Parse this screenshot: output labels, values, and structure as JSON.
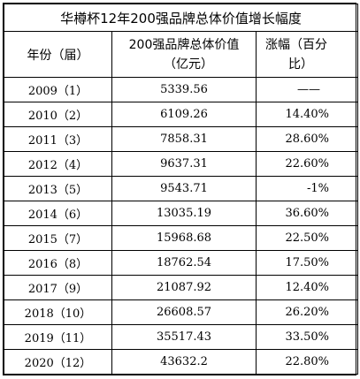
{
  "title": "华樽杯12年200强品牌总体价值增长幅度",
  "headers": {
    "year": "年份（届）",
    "value_line1": "200强品牌总体价值",
    "value_line2": "（亿元）",
    "growth_line1": "涨幅（百分",
    "growth_line2": "比）"
  },
  "rows": [
    {
      "year": "2009（1）",
      "value": "5339.56",
      "growth": "——"
    },
    {
      "year": "2010（2）",
      "value": "6109.26",
      "growth": "14.40%"
    },
    {
      "year": "2011（3）",
      "value": "7858.31",
      "growth": "28.60%"
    },
    {
      "year": "2012（4）",
      "value": "9637.31",
      "growth": "22.60%"
    },
    {
      "year": "2013（5）",
      "value": "9543.71",
      "growth": "-1%"
    },
    {
      "year": "2014（6）",
      "value": "13035.19",
      "growth": "36.60%"
    },
    {
      "year": "2015（7）",
      "value": "15968.68",
      "growth": "22.50%"
    },
    {
      "year": "2016（8）",
      "value": "18762.54",
      "growth": "17.50%"
    },
    {
      "year": "2017（9）",
      "value": "21087.92",
      "growth": "12.40%"
    },
    {
      "year": "2018（10）",
      "value": "26608.57",
      "growth": "26.20%"
    },
    {
      "year": "2019（11）",
      "value": "35517.43",
      "growth": "33.50%"
    },
    {
      "year": "2020（12）",
      "value": "43632.2",
      "growth": "22.80%"
    }
  ]
}
